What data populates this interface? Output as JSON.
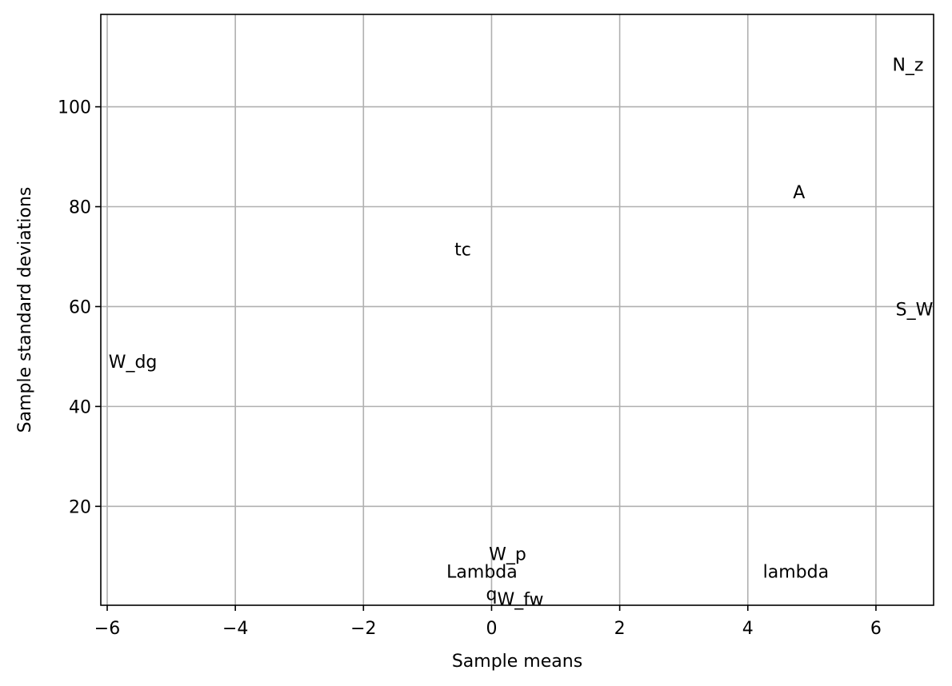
{
  "chart_data": {
    "type": "scatter",
    "title": "",
    "xlabel": "Sample means",
    "ylabel": "Sample standard deviations",
    "xlim": [
      -6.1,
      6.9
    ],
    "ylim": [
      0.2,
      118.5
    ],
    "grid": true,
    "xticks": [
      -6,
      -4,
      -2,
      0,
      2,
      4,
      6
    ],
    "xtick_labels": [
      "−6",
      "−4",
      "−2",
      "0",
      "2",
      "4",
      "6"
    ],
    "yticks": [
      20,
      40,
      60,
      80,
      100
    ],
    "ytick_labels": [
      "20",
      "40",
      "60",
      "80",
      "100"
    ],
    "points": [
      {
        "label": "N_z",
        "x": 6.5,
        "y": 108.5
      },
      {
        "label": "A",
        "x": 4.8,
        "y": 83.0
      },
      {
        "label": "tc",
        "x": -0.45,
        "y": 71.5
      },
      {
        "label": "S_W",
        "x": 6.6,
        "y": 59.5
      },
      {
        "label": "W_dg",
        "x": -5.6,
        "y": 49.0
      },
      {
        "label": "W_p",
        "x": 0.25,
        "y": 10.5
      },
      {
        "label": "Lambda",
        "x": -0.15,
        "y": 7.0
      },
      {
        "label": "lambda",
        "x": 4.75,
        "y": 7.0
      },
      {
        "label": "q",
        "x": 0.0,
        "y": 2.5
      },
      {
        "label": "W_fw",
        "x": 0.45,
        "y": 1.5
      }
    ]
  }
}
